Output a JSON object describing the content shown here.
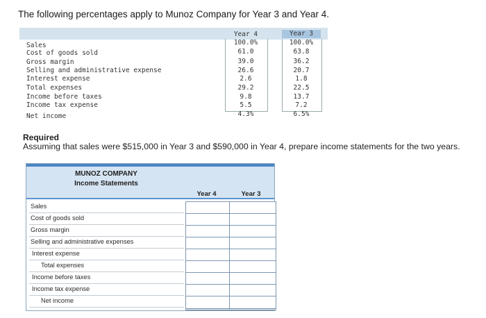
{
  "intro_text": "The following percentages apply to Munoz Company for Year 3 and Year 4.",
  "percent_table": {
    "year4_header": "Year 4",
    "year3_header": "Year 3",
    "rows": [
      {
        "label": "Sales",
        "y4": "100.0%",
        "y3": "100.0%"
      },
      {
        "label": "Cost of goods sold",
        "y4": "61.0",
        "y3": "63.8"
      },
      {
        "label": "Gross margin",
        "y4": "39.0",
        "y3": "36.2"
      },
      {
        "label": "Selling and administrative expense",
        "y4": "26.6",
        "y3": "20.7"
      },
      {
        "label": "Interest expense",
        "y4": "2.6",
        "y3": "1.8"
      },
      {
        "label": "Total expenses",
        "y4": "29.2",
        "y3": "22.5"
      },
      {
        "label": "Income before taxes",
        "y4": "9.8",
        "y3": "13.7"
      },
      {
        "label": "Income tax expense",
        "y4": "5.5",
        "y3": "7.2"
      },
      {
        "label": "Net income",
        "y4": "4.3%",
        "y3": "6.5%"
      }
    ]
  },
  "required_label": "Required",
  "instruction_text": "Assuming that sales were $515,000 in Year 3 and $590,000 in Year 4, prepare income statements for the two years.",
  "statement": {
    "company": "MUNOZ COMPANY",
    "title": "Income Statements",
    "year4_header": "Year 4",
    "year3_header": "Year 3",
    "rows": [
      {
        "label": "Sales",
        "year4": "",
        "year3": ""
      },
      {
        "label": "Cost of goods sold",
        "year4": "",
        "year3": ""
      },
      {
        "label": "Gross margin",
        "year4": "",
        "year3": ""
      },
      {
        "label": "Selling and administrative expenses",
        "year4": "",
        "year3": ""
      },
      {
        "label": "Interest expense",
        "year4": "",
        "year3": ""
      },
      {
        "label": "Total expenses",
        "year4": "",
        "year3": ""
      },
      {
        "label": "Income before taxes",
        "year4": "",
        "year3": ""
      },
      {
        "label": "Income tax expense",
        "year4": "",
        "year3": ""
      },
      {
        "label": "Net income",
        "year4": "",
        "year3": ""
      }
    ]
  },
  "colors": {
    "header_fill": "#d5e4f2",
    "header_bar": "#4b86c4",
    "year3_highlight": "#a9c6e0"
  }
}
